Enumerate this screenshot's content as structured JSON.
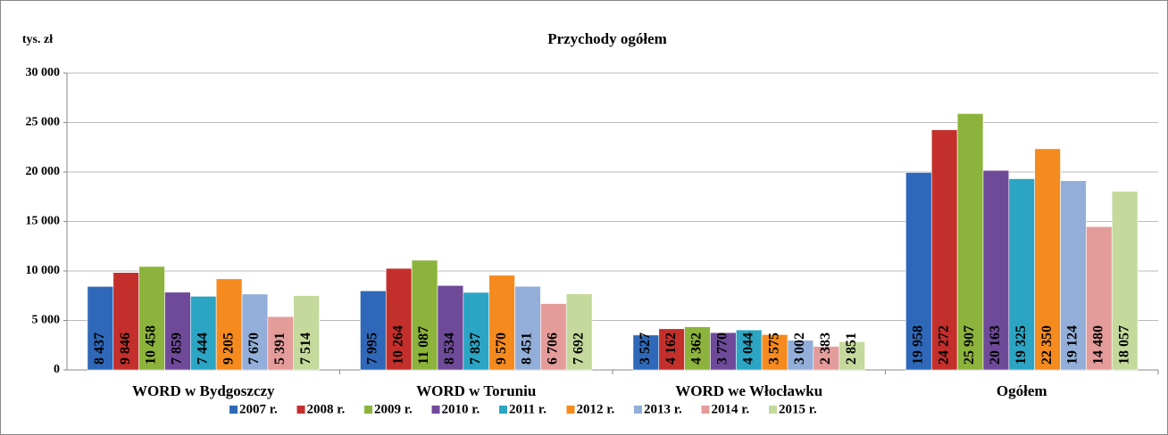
{
  "chart_data": {
    "type": "bar",
    "title": "Przychody ogółem",
    "y_axis_label": "tys. zł",
    "categories": [
      "WORD  w Bydgoszczy",
      "WORD w Toruniu",
      "WORD we Włocławku",
      "Ogółem"
    ],
    "series": [
      {
        "name": "2007 r.",
        "color": "#2f68b8",
        "values": [
          8437,
          7995,
          3527,
          19958
        ],
        "value_labels": [
          "8 437",
          "7 995",
          "3 527",
          "19 958"
        ]
      },
      {
        "name": "2008 r.",
        "color": "#c3302c",
        "values": [
          9846,
          10264,
          4162,
          24272
        ],
        "value_labels": [
          "9 846",
          "10 264",
          "4 162",
          "24 272"
        ]
      },
      {
        "name": "2009 r.",
        "color": "#8cb33b",
        "values": [
          10458,
          11087,
          4362,
          25907
        ],
        "value_labels": [
          "10 458",
          "11 087",
          "4 362",
          "25 907"
        ]
      },
      {
        "name": "2010 r.",
        "color": "#6e4a99",
        "values": [
          7859,
          8534,
          3770,
          20163
        ],
        "value_labels": [
          "7 859",
          "8 534",
          "3 770",
          "20 163"
        ]
      },
      {
        "name": "2011 r.",
        "color": "#2ba5c3",
        "values": [
          7444,
          7837,
          4044,
          19325
        ],
        "value_labels": [
          "7 444",
          "7 837",
          "4 044",
          "19 325"
        ]
      },
      {
        "name": "2012 r.",
        "color": "#f58a1f",
        "values": [
          9205,
          9570,
          3575,
          22350
        ],
        "value_labels": [
          "9 205",
          "9 570",
          "3 575",
          "22 350"
        ]
      },
      {
        "name": "2013 r.",
        "color": "#93afd9",
        "values": [
          7670,
          8451,
          3002,
          19124
        ],
        "value_labels": [
          "7 670",
          "8 451",
          "3 002",
          "19 124"
        ]
      },
      {
        "name": "2014 r.",
        "color": "#e49c9b",
        "values": [
          5391,
          6706,
          2383,
          14480
        ],
        "value_labels": [
          "5 391",
          "6 706",
          "2 383",
          "14 480"
        ]
      },
      {
        "name": "2015 r.",
        "color": "#c4d99b",
        "values": [
          7514,
          7692,
          2851,
          18057
        ],
        "value_labels": [
          "7 514",
          "7 692",
          "2 851",
          "18 057"
        ]
      }
    ],
    "ylim": [
      0,
      30000
    ],
    "yticks": [
      0,
      {
        "value": 5000,
        "label": "5 000"
      },
      {
        "value": 10000,
        "label": "10 000"
      },
      {
        "value": 15000,
        "label": "15 000"
      },
      {
        "value": 20000,
        "label": "20 000"
      },
      {
        "value": 25000,
        "label": "25 000"
      },
      {
        "value": 30000,
        "label": "30 000"
      }
    ],
    "grid": true,
    "legend": "bottom"
  }
}
